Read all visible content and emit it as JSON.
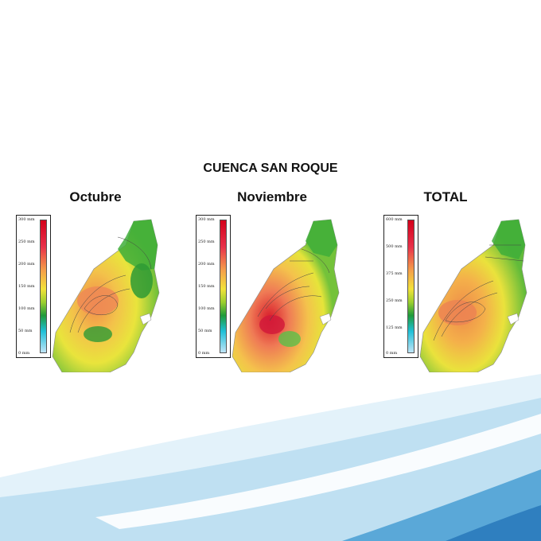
{
  "title": "CUENCA SAN ROQUE",
  "panels": [
    {
      "id": "octubre",
      "label": "Octubre",
      "legend_ticks": [
        "300 mm",
        "250 mm",
        "200 mm",
        "150 mm",
        "100 mm",
        "50 mm",
        "0 mm"
      ]
    },
    {
      "id": "noviembre",
      "label": "Noviembre",
      "legend_ticks": [
        "300 mm",
        "250 mm",
        "200 mm",
        "150 mm",
        "100 mm",
        "50 mm",
        "0 mm"
      ]
    },
    {
      "id": "total",
      "label": "TOTAL",
      "legend_ticks": [
        "600 mm",
        "500 mm",
        "375 mm",
        "250 mm",
        "125 mm",
        "0 mm"
      ]
    }
  ],
  "colors": {
    "wave_light": "#d6ecf7",
    "wave_mid": "#a9d6ee",
    "wave_dark": "#4fa3d6"
  }
}
